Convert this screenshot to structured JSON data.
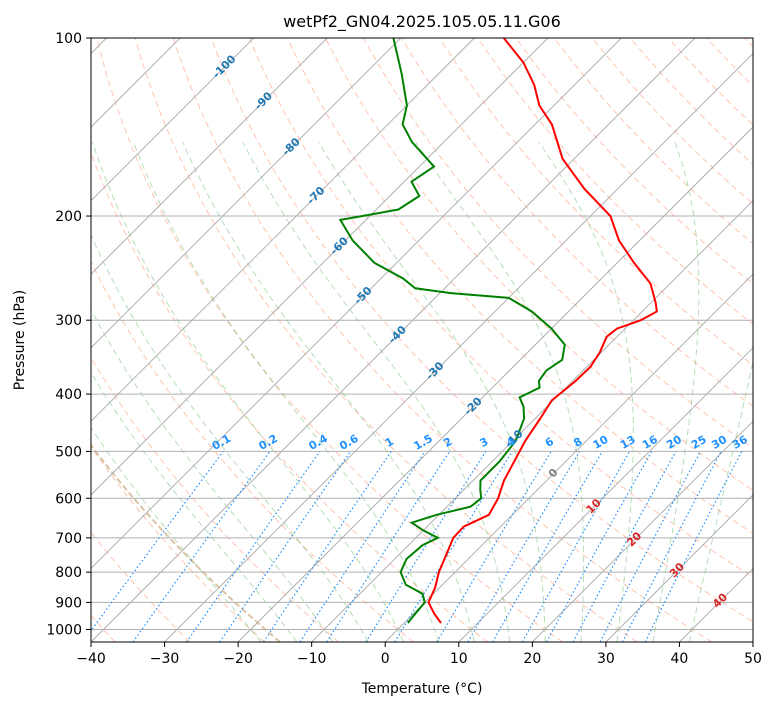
{
  "chart_data": {
    "type": "skew-t",
    "title": "wetPf2_GN04.2025.105.05.11.G06",
    "xlabel": "Temperature (°C)",
    "ylabel": "Pressure (hPa)",
    "xlim": [
      -40,
      50
    ],
    "ylim": [
      1050,
      100
    ],
    "y_scale": "log",
    "grid": true,
    "xticks": [
      "−40",
      "−30",
      "−20",
      "−10",
      "0",
      "10",
      "20",
      "30",
      "40",
      "50"
    ],
    "yticks": [
      {
        "p": 100,
        "label": "100"
      },
      {
        "p": 200,
        "label": "200"
      },
      {
        "p": 300,
        "label": "300"
      },
      {
        "p": 400,
        "label": "400"
      },
      {
        "p": 500,
        "label": "500"
      },
      {
        "p": 600,
        "label": "600"
      },
      {
        "p": 700,
        "label": "700"
      },
      {
        "p": 800,
        "label": "800"
      },
      {
        "p": 900,
        "label": "900"
      },
      {
        "p": 1000,
        "label": "1000"
      }
    ],
    "series": [
      {
        "role": "temperature",
        "color": "#ff0000",
        "points": [
          [
            975,
            5.0
          ],
          [
            940,
            2.8
          ],
          [
            900,
            0.5
          ],
          [
            850,
            -0.6
          ],
          [
            800,
            -2.2
          ],
          [
            750,
            -3.5
          ],
          [
            700,
            -4.9
          ],
          [
            670,
            -5.0
          ],
          [
            640,
            -3.2
          ],
          [
            600,
            -4.2
          ],
          [
            560,
            -5.8
          ],
          [
            520,
            -7.0
          ],
          [
            480,
            -8.3
          ],
          [
            440,
            -9.3
          ],
          [
            410,
            -10.2
          ],
          [
            380,
            -9.6
          ],
          [
            360,
            -9.5
          ],
          [
            340,
            -10.2
          ],
          [
            320,
            -11.4
          ],
          [
            310,
            -11.1
          ],
          [
            300,
            -9.0
          ],
          [
            290,
            -8.0
          ],
          [
            280,
            -9.4
          ],
          [
            260,
            -12.7
          ],
          [
            240,
            -17.7
          ],
          [
            220,
            -22.8
          ],
          [
            200,
            -27.3
          ],
          [
            180,
            -34.5
          ],
          [
            160,
            -41.6
          ],
          [
            140,
            -47.7
          ],
          [
            130,
            -52.0
          ],
          [
            120,
            -55.5
          ],
          [
            110,
            -60.0
          ],
          [
            100,
            -66.0
          ]
        ]
      },
      {
        "role": "dewpoint",
        "color": "#008000",
        "points": [
          [
            975,
            0.5
          ],
          [
            950,
            0.3
          ],
          [
            900,
            0.0
          ],
          [
            870,
            -1.5
          ],
          [
            840,
            -5.0
          ],
          [
            800,
            -7.4
          ],
          [
            760,
            -8.4
          ],
          [
            720,
            -8.1
          ],
          [
            700,
            -7.0
          ],
          [
            680,
            -10.0
          ],
          [
            660,
            -12.6
          ],
          [
            640,
            -10.3
          ],
          [
            620,
            -6.8
          ],
          [
            600,
            -6.5
          ],
          [
            580,
            -7.8
          ],
          [
            560,
            -9.0
          ],
          [
            520,
            -9.0
          ],
          [
            480,
            -9.6
          ],
          [
            440,
            -11.5
          ],
          [
            420,
            -13.2
          ],
          [
            405,
            -15.0
          ],
          [
            390,
            -13.6
          ],
          [
            380,
            -14.6
          ],
          [
            365,
            -15.0
          ],
          [
            350,
            -14.3
          ],
          [
            330,
            -16.0
          ],
          [
            310,
            -20.0
          ],
          [
            290,
            -25.0
          ],
          [
            275,
            -30.0
          ],
          [
            270,
            -38.5
          ],
          [
            265,
            -44.0
          ],
          [
            255,
            -47.0
          ],
          [
            240,
            -53.0
          ],
          [
            220,
            -59.0
          ],
          [
            203,
            -63.5
          ],
          [
            200,
            -61.0
          ],
          [
            195,
            -57.0
          ],
          [
            185,
            -56.0
          ],
          [
            175,
            -59.0
          ],
          [
            165,
            -58.0
          ],
          [
            150,
            -64.3
          ],
          [
            140,
            -68.0
          ],
          [
            130,
            -70.0
          ],
          [
            115,
            -75.0
          ],
          [
            100,
            -81.0
          ]
        ]
      }
    ],
    "isotherm_labels": [
      {
        "t": -100,
        "p": 112
      },
      {
        "t": -90,
        "p": 128
      },
      {
        "t": -80,
        "p": 153
      },
      {
        "t": -70,
        "p": 185
      },
      {
        "t": -60,
        "p": 225
      },
      {
        "t": -50,
        "p": 273
      },
      {
        "t": -40,
        "p": 318
      },
      {
        "t": -30,
        "p": 366
      },
      {
        "t": -20,
        "p": 420
      },
      {
        "t": -10,
        "p": 477
      },
      {
        "t": 0,
        "p": 545
      },
      {
        "t": 10,
        "p": 620
      },
      {
        "t": 20,
        "p": 705
      },
      {
        "t": 30,
        "p": 795
      },
      {
        "t": 40,
        "p": 895
      }
    ],
    "mixing_ratio_labels": [
      "0.1",
      "0.2",
      "0.4",
      "0.6",
      "1",
      "1.5",
      "2",
      "3",
      "4",
      "6",
      "8",
      "10",
      "13",
      "16",
      "20",
      "25",
      "30",
      "36"
    ],
    "colors": {
      "isotherm_label_cold": "#1f77b4",
      "isotherm_label_warm": "#d62728",
      "isotherm_label_zero": "#7f7f7f",
      "mixing_ratio": "#1e90ff",
      "dry_adiabat": "#ff7f50",
      "moist_adiabat": "#2ca02c",
      "grid": "#b0b0b0",
      "highlight_adiabat": "#d2b48c"
    }
  }
}
